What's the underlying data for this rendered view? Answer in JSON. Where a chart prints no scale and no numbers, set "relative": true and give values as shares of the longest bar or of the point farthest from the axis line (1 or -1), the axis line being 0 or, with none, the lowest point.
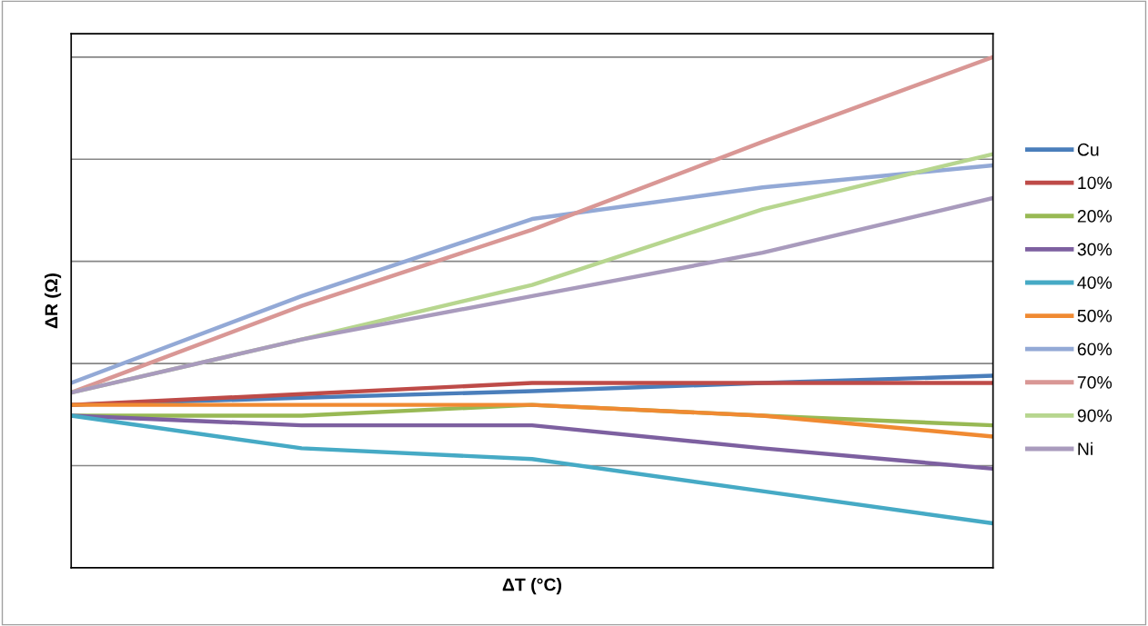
{
  "chart_data": {
    "type": "line",
    "relative": true,
    "xlabel": "ΔT (°C)",
    "ylabel": "ΔR (Ω)",
    "categories": [
      null,
      null,
      null,
      null,
      null
    ],
    "series": [
      {
        "name": "Cu",
        "color": "#4a7ebb",
        "values": [
          0.319,
          0.333,
          0.346,
          0.362,
          0.376
        ]
      },
      {
        "name": "10%",
        "color": "#be4b48",
        "values": [
          0.319,
          0.34,
          0.362,
          0.362,
          0.362
        ]
      },
      {
        "name": "20%",
        "color": "#98b954",
        "values": [
          0.298,
          0.298,
          0.319,
          0.298,
          0.279
        ]
      },
      {
        "name": "30%",
        "color": "#7d60a0",
        "values": [
          0.298,
          0.279,
          0.279,
          0.234,
          0.194
        ]
      },
      {
        "name": "40%",
        "color": "#46aac5",
        "values": [
          0.298,
          0.234,
          0.213,
          0.15,
          0.087
        ]
      },
      {
        "name": "50%",
        "color": "#f08a32",
        "values": [
          0.319,
          0.319,
          0.319,
          0.298,
          0.257
        ]
      },
      {
        "name": "60%",
        "color": "#93a9d6",
        "values": [
          0.362,
          0.532,
          0.683,
          0.745,
          0.788
        ]
      },
      {
        "name": "70%",
        "color": "#d99795",
        "values": [
          0.343,
          0.513,
          0.662,
          0.834,
          1
        ]
      },
      {
        "name": "90%",
        "color": "#b7d68f",
        "values": [
          0.343,
          0.447,
          0.554,
          0.702,
          0.81
        ]
      },
      {
        "name": "Ni",
        "color": "#a99bbd",
        "values": [
          0.343,
          0.447,
          0.532,
          0.617,
          0.724
        ]
      }
    ],
    "grid": "y",
    "legend": "right",
    "tick_labels": false,
    "marker": "none",
    "line_style": "solid"
  }
}
